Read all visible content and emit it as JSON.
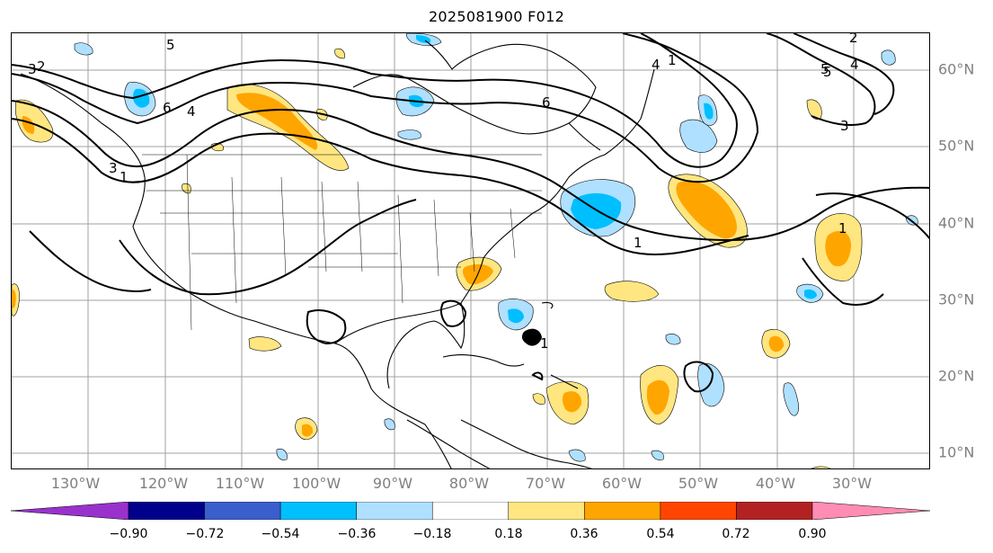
{
  "title": "2025081900 F012",
  "map": {
    "region": "North Atlantic / North America",
    "gridlines": true,
    "lon_labels": [
      "130°W",
      "120°W",
      "110°W",
      "100°W",
      "90°W",
      "80°W",
      "70°W",
      "60°W",
      "50°W",
      "40°W",
      "30°W"
    ],
    "lat_labels": [
      "60°N",
      "50°N",
      "40°N",
      "30°N",
      "20°N",
      "10°N"
    ],
    "contour_labels": [
      "5",
      "3",
      "2",
      "4",
      "1",
      "3",
      "6",
      "4",
      "1",
      "6",
      "5",
      "1",
      "2",
      "4",
      "5",
      "3",
      "1",
      "1"
    ],
    "colors": {
      "land_outline": "#000000",
      "grid": "#a0a0a0",
      "contour": "#000000"
    }
  },
  "colorbar": {
    "ticks": [
      "−0.90",
      "−0.72",
      "−0.54",
      "−0.36",
      "−0.18",
      "0.18",
      "0.36",
      "0.54",
      "0.72",
      "0.90"
    ],
    "colors": [
      "#9932cc",
      "#00008b",
      "#3a5fcd",
      "#00bfff",
      "#afe0ff",
      "#ffffff",
      "#ffe680",
      "#ffa500",
      "#ff4500",
      "#b22222",
      "#ff8cb4"
    ]
  }
}
